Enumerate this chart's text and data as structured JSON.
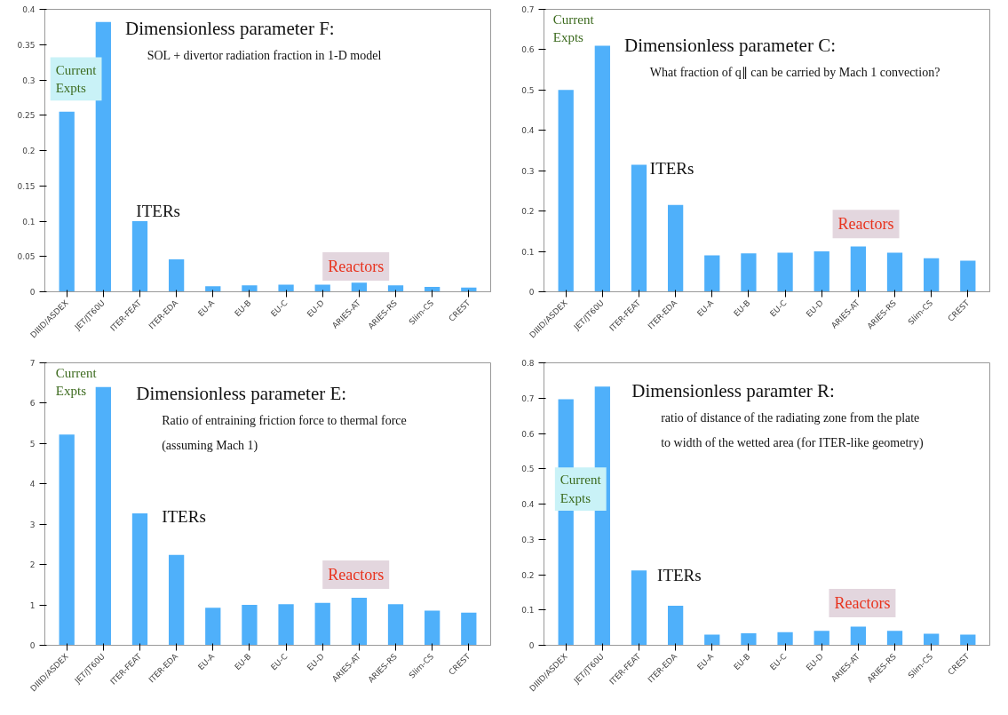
{
  "chart_data": [
    {
      "type": "bar",
      "title": "Dimensionless parameter F:",
      "subtitle": "SOL + divertor radiation fraction in 1-D model",
      "categories": [
        "DIIID/ASDEX",
        "JET/JT60U",
        "ITER-FEAT",
        "ITER-EDA",
        "EU-A",
        "EU-B",
        "EU-C",
        "EU-D",
        "ARIES-AT",
        "ARIES-RS",
        "Slim-CS",
        "CREST"
      ],
      "values": [
        0.255,
        0.382,
        0.1,
        0.046,
        0.008,
        0.009,
        0.01,
        0.01,
        0.013,
        0.009,
        0.007,
        0.006
      ],
      "color": "#4fb0fa",
      "ylim": [
        0,
        0.4
      ],
      "yticks": [
        0,
        0.05,
        0.1,
        0.15,
        0.2,
        0.25,
        0.3,
        0.35,
        0.4
      ],
      "grid": false,
      "annotations": [
        "Current Expts",
        "ITERs",
        "Reactors"
      ]
    },
    {
      "type": "bar",
      "title": "Dimensionless parameter C:",
      "subtitle": "What fraction of q∥ can be carried by Mach 1 convection?",
      "categories": [
        "DIIID/ASDEX",
        "JET/JT60U",
        "ITER-FEAT",
        "ITER-EDA",
        "EU-A",
        "EU-B",
        "EU-C",
        "EU-D",
        "ARIES-AT",
        "ARIES-RS",
        "Slim-CS",
        "CREST"
      ],
      "values": [
        0.5,
        0.61,
        0.315,
        0.215,
        0.09,
        0.095,
        0.097,
        0.1,
        0.112,
        0.097,
        0.083,
        0.077
      ],
      "color": "#4fb0fa",
      "ylim": [
        0,
        0.7
      ],
      "yticks": [
        0,
        0.1,
        0.2,
        0.3,
        0.4,
        0.5,
        0.6,
        0.7
      ],
      "grid": false,
      "annotations": [
        "Current Expts",
        "ITERs",
        "Reactors"
      ]
    },
    {
      "type": "bar",
      "title": "Dimensionless parameter E:",
      "subtitle": "Ratio of entraining friction force to thermal force\n(assuming Mach 1)",
      "categories": [
        "DIIID/ASDEX",
        "JET/JT60U",
        "ITER-FEAT",
        "ITER-EDA",
        "EU-A",
        "EU-B",
        "EU-C",
        "EU-D",
        "ARIES-AT",
        "ARIES-RS",
        "Slim-CS",
        "CREST"
      ],
      "values": [
        5.22,
        6.4,
        3.27,
        2.24,
        0.93,
        1.0,
        1.02,
        1.05,
        1.18,
        1.02,
        0.86,
        0.81
      ],
      "color": "#4fb0fa",
      "ylim": [
        0,
        7
      ],
      "yticks": [
        0,
        1,
        2,
        3,
        4,
        5,
        6,
        7
      ],
      "grid": false,
      "annotations": [
        "Current Expts",
        "ITERs",
        "Reactors"
      ]
    },
    {
      "type": "bar",
      "title": "Dimensionless paramter R:",
      "subtitle": "ratio of distance of the radiating zone from the plate\nto width of the wetted area (for ITER-like geometry)",
      "categories": [
        "DIIID/ASDEX",
        "JET/JT60U",
        "ITER-FEAT",
        "ITER-EDA",
        "EU-A",
        "EU-B",
        "EU-C",
        "EU-D",
        "ARIES-AT",
        "ARIES-RS",
        "Slim-CS",
        "CREST"
      ],
      "values": [
        0.697,
        0.733,
        0.212,
        0.112,
        0.03,
        0.034,
        0.037,
        0.041,
        0.053,
        0.041,
        0.033,
        0.03
      ],
      "color": "#4fb0fa",
      "ylim": [
        0,
        0.8
      ],
      "yticks": [
        0,
        0.1,
        0.2,
        0.3,
        0.4,
        0.5,
        0.6,
        0.7,
        0.8
      ],
      "grid": false,
      "annotations": [
        "Current Expts",
        "ITERs",
        "Reactors"
      ]
    }
  ]
}
